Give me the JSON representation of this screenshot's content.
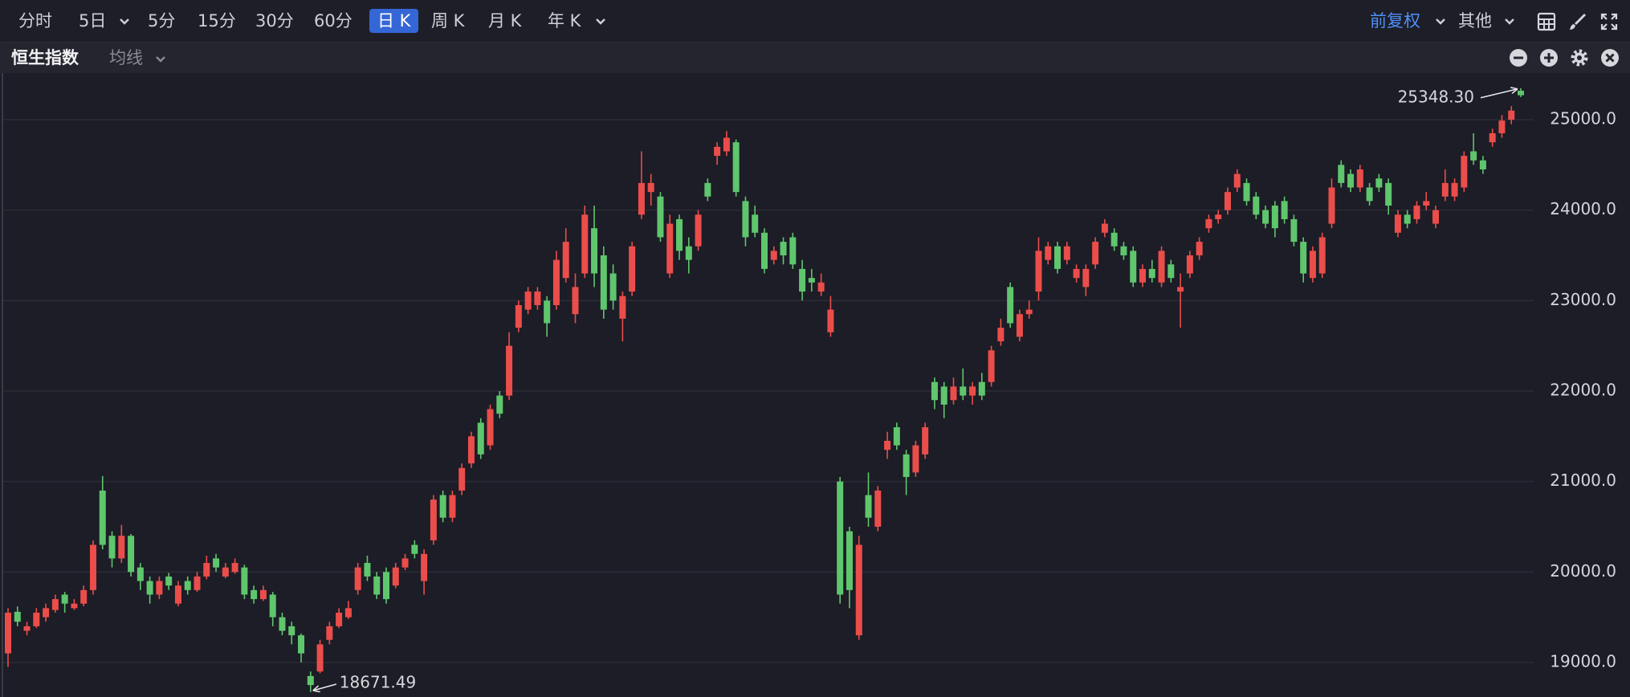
{
  "toolbar": {
    "periods": [
      "分时",
      "5日",
      "5分",
      "15分",
      "30分",
      "60分",
      "日 K",
      "周 K",
      "月 K",
      "年 K"
    ],
    "adjust": "前复权",
    "more": "其他"
  },
  "indicator_bar": {
    "symbol": "恒生指数",
    "ma": "均线"
  },
  "chart_data": {
    "type": "candlestick",
    "up_color": "#eb4d4b",
    "down_color": "#5fc66d",
    "grid": true,
    "ylim": [
      18618,
      25515
    ],
    "yticks": [
      {
        "value": 19000,
        "label": "19000.0"
      },
      {
        "value": 20000,
        "label": "20000.0"
      },
      {
        "value": 21000,
        "label": "21000.0"
      },
      {
        "value": 22000,
        "label": "22000.0"
      },
      {
        "value": 23000,
        "label": "23000.0"
      },
      {
        "value": 24000,
        "label": "24000.0"
      },
      {
        "value": 25000,
        "label": "25000.0"
      }
    ],
    "annotations": [
      {
        "value": 25348.3,
        "label": "25348.30"
      },
      {
        "value": 18671.49,
        "label": "18671.49"
      }
    ],
    "open": [
      19100,
      19560,
      19350,
      19400,
      19500,
      19580,
      19750,
      19600,
      19650,
      19800,
      20900,
      20400,
      20150,
      20400,
      20050,
      19900,
      19750,
      19950,
      19650,
      19900,
      19800,
      19950,
      20150,
      19950,
      20000,
      20050,
      19800,
      19700,
      19750,
      19500,
      19400,
      19300,
      18850,
      18900,
      19250,
      19400,
      19500,
      19800,
      20100,
      19950,
      20000,
      19850,
      20050,
      20300,
      19900,
      20350,
      20850,
      20600,
      20900,
      21200,
      21650,
      21400,
      21950,
      21950,
      22700,
      22900,
      22950,
      23000,
      22950,
      23250,
      22850,
      23300,
      23800,
      23500,
      23300,
      22800,
      23100,
      23950,
      24200,
      24150,
      23300,
      23900,
      23600,
      23600,
      24300,
      24600,
      24650,
      24750,
      24100,
      23950,
      23750,
      23450,
      23650,
      23700,
      23350,
      23250,
      23100,
      22650,
      21000,
      20450,
      19300,
      20850,
      20500,
      21350,
      21600,
      21300,
      21100,
      21300,
      22100,
      22050,
      21900,
      22050,
      21950,
      22100,
      22100,
      22550,
      23150,
      22600,
      22850,
      23100,
      23450,
      23600,
      23450,
      23250,
      23150,
      23400,
      23750,
      23750,
      23600,
      23550,
      23200,
      23350,
      23200,
      23400,
      23100,
      23300,
      23500,
      23800,
      23900,
      24000,
      24250,
      24300,
      24150,
      24000,
      24050,
      24100,
      23900,
      23650,
      23250,
      23300,
      23850,
      24500,
      24400,
      24250,
      24250,
      24350,
      24300,
      23750,
      23950,
      23900,
      24050,
      23850,
      24150,
      24150,
      24250,
      24650,
      24550,
      24750,
      24850,
      25000,
      25320
    ],
    "high": [
      19600,
      19620,
      19450,
      19600,
      19650,
      19750,
      19780,
      19700,
      19850,
      20350,
      21060,
      20450,
      20520,
      20420,
      20100,
      19950,
      19950,
      19990,
      19900,
      19950,
      20000,
      20180,
      20200,
      20100,
      20150,
      20080,
      19850,
      19850,
      19780,
      19550,
      19450,
      19320,
      18900,
      19250,
      19450,
      19600,
      19680,
      20100,
      20180,
      20000,
      20050,
      20100,
      20200,
      20350,
      20250,
      20850,
      20900,
      20900,
      21200,
      21550,
      21700,
      21850,
      22000,
      22650,
      23000,
      23150,
      23150,
      23050,
      23550,
      23800,
      23300,
      24050,
      24050,
      23600,
      23400,
      23100,
      23650,
      24650,
      24400,
      24200,
      23950,
      23950,
      23700,
      24000,
      24350,
      24750,
      24874,
      24780,
      24150,
      24050,
      23800,
      23600,
      23700,
      23750,
      23450,
      23350,
      23300,
      23050,
      21050,
      20500,
      20400,
      21100,
      20950,
      21550,
      21650,
      21350,
      21450,
      21650,
      22150,
      22100,
      22150,
      22250,
      22100,
      22200,
      22500,
      22800,
      23200,
      22900,
      23000,
      23700,
      23650,
      23650,
      23650,
      23400,
      23400,
      23700,
      23900,
      23800,
      23650,
      23600,
      23400,
      23450,
      23600,
      23450,
      23300,
      23550,
      23700,
      23950,
      24000,
      24250,
      24450,
      24350,
      24200,
      24050,
      24100,
      24150,
      23950,
      23700,
      23600,
      23750,
      24350,
      24550,
      24450,
      24500,
      24300,
      24400,
      24350,
      24000,
      24000,
      24100,
      24200,
      24050,
      24450,
      24350,
      24650,
      24850,
      24600,
      24900,
      25050,
      25150,
      25348.3
    ],
    "low": [
      18950,
      19400,
      19300,
      19380,
      19450,
      19550,
      19550,
      19580,
      19620,
      19750,
      20250,
      20050,
      20100,
      19950,
      19800,
      19650,
      19700,
      19800,
      19620,
      19750,
      19780,
      19920,
      20000,
      19930,
      19980,
      19700,
      19650,
      19680,
      19400,
      19300,
      19200,
      19000,
      18671.49,
      18880,
      19200,
      19380,
      19480,
      19750,
      19900,
      19700,
      19650,
      19820,
      20020,
      20150,
      19750,
      20300,
      20550,
      20550,
      20850,
      21150,
      21250,
      21350,
      21700,
      21900,
      22650,
      22850,
      22900,
      22600,
      22900,
      23200,
      22750,
      23250,
      23150,
      22800,
      22900,
      22550,
      23050,
      23900,
      24050,
      23650,
      23250,
      23450,
      23300,
      23550,
      24100,
      24500,
      24600,
      24150,
      23600,
      23700,
      23300,
      23400,
      23400,
      23350,
      23000,
      23100,
      23050,
      22600,
      19650,
      19600,
      19250,
      20500,
      20450,
      21250,
      21350,
      20850,
      21050,
      21250,
      21800,
      21700,
      21850,
      21900,
      21850,
      21900,
      22050,
      22500,
      22700,
      22550,
      22800,
      23000,
      23400,
      23300,
      23400,
      23200,
      23050,
      23350,
      23700,
      23550,
      23450,
      23150,
      23150,
      23200,
      23150,
      23200,
      22700,
      23250,
      23450,
      23750,
      23850,
      23950,
      24200,
      24050,
      23900,
      23800,
      23700,
      23850,
      23600,
      23200,
      23200,
      23250,
      23800,
      24250,
      24200,
      24200,
      24050,
      24200,
      23950,
      23700,
      23800,
      23850,
      24000,
      23800,
      24100,
      24100,
      24200,
      24500,
      24400,
      24700,
      24800,
      24950,
      25250
    ],
    "close": [
      19550,
      19450,
      19400,
      19550,
      19600,
      19700,
      19650,
      19650,
      19800,
      20300,
      20300,
      20150,
      20400,
      20000,
      19900,
      19750,
      19900,
      19850,
      19850,
      19800,
      19950,
      20100,
      20050,
      20050,
      20100,
      19750,
      19700,
      19800,
      19500,
      19350,
      19300,
      19100,
      18750,
      19200,
      19400,
      19550,
      19600,
      20050,
      19950,
      19750,
      19700,
      20050,
      20150,
      20200,
      20200,
      20800,
      20600,
      20850,
      21150,
      21500,
      21300,
      21800,
      21750,
      22500,
      22950,
      23100,
      23100,
      22750,
      23450,
      23650,
      23150,
      23950,
      23300,
      22900,
      23000,
      23050,
      23600,
      24300,
      24300,
      23700,
      23850,
      23550,
      23450,
      23950,
      24150,
      24700,
      24800,
      24200,
      23700,
      23750,
      23350,
      23550,
      23500,
      23400,
      23100,
      23200,
      23200,
      22900,
      19750,
      19800,
      20300,
      20600,
      20900,
      21450,
      21400,
      21050,
      21400,
      21600,
      21900,
      21850,
      22050,
      21950,
      22050,
      21950,
      22450,
      22700,
      22750,
      22850,
      22900,
      23550,
      23600,
      23350,
      23600,
      23350,
      23350,
      23650,
      23850,
      23600,
      23500,
      23200,
      23350,
      23250,
      23550,
      23250,
      23150,
      23500,
      23650,
      23900,
      23950,
      24200,
      24400,
      24100,
      23950,
      23850,
      23800,
      23900,
      23650,
      23300,
      23550,
      23700,
      24250,
      24300,
      24250,
      24450,
      24100,
      24250,
      24050,
      23950,
      23850,
      24050,
      24100,
      24000,
      24300,
      24300,
      24600,
      24550,
      24450,
      24850,
      24990,
      25100,
      25270
    ]
  }
}
